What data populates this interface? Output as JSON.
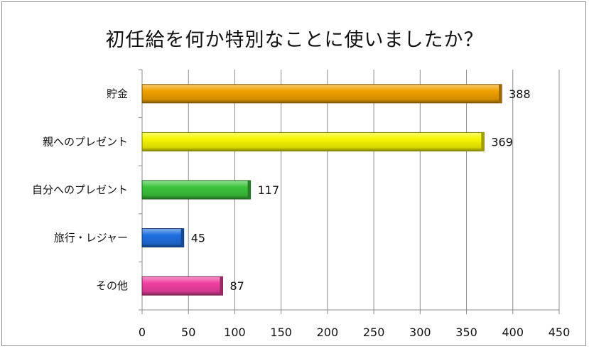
{
  "chart_data": {
    "type": "bar",
    "orientation": "horizontal",
    "title": "初任給を何か特別なことに使いましたか？",
    "categories": [
      "貯金",
      "親へのプレゼント",
      "自分へのプレゼント",
      "旅行・レジャー",
      "その他"
    ],
    "values": [
      388,
      369,
      117,
      45,
      87
    ],
    "xlim": [
      0,
      450
    ],
    "xticks": [
      0,
      50,
      100,
      150,
      200,
      250,
      300,
      350,
      400,
      450
    ],
    "grid": true,
    "legend": "none",
    "bar_colors": [
      "#f0a000",
      "#f5f500",
      "#3cc43c",
      "#1f6fe0",
      "#f040a0"
    ]
  }
}
